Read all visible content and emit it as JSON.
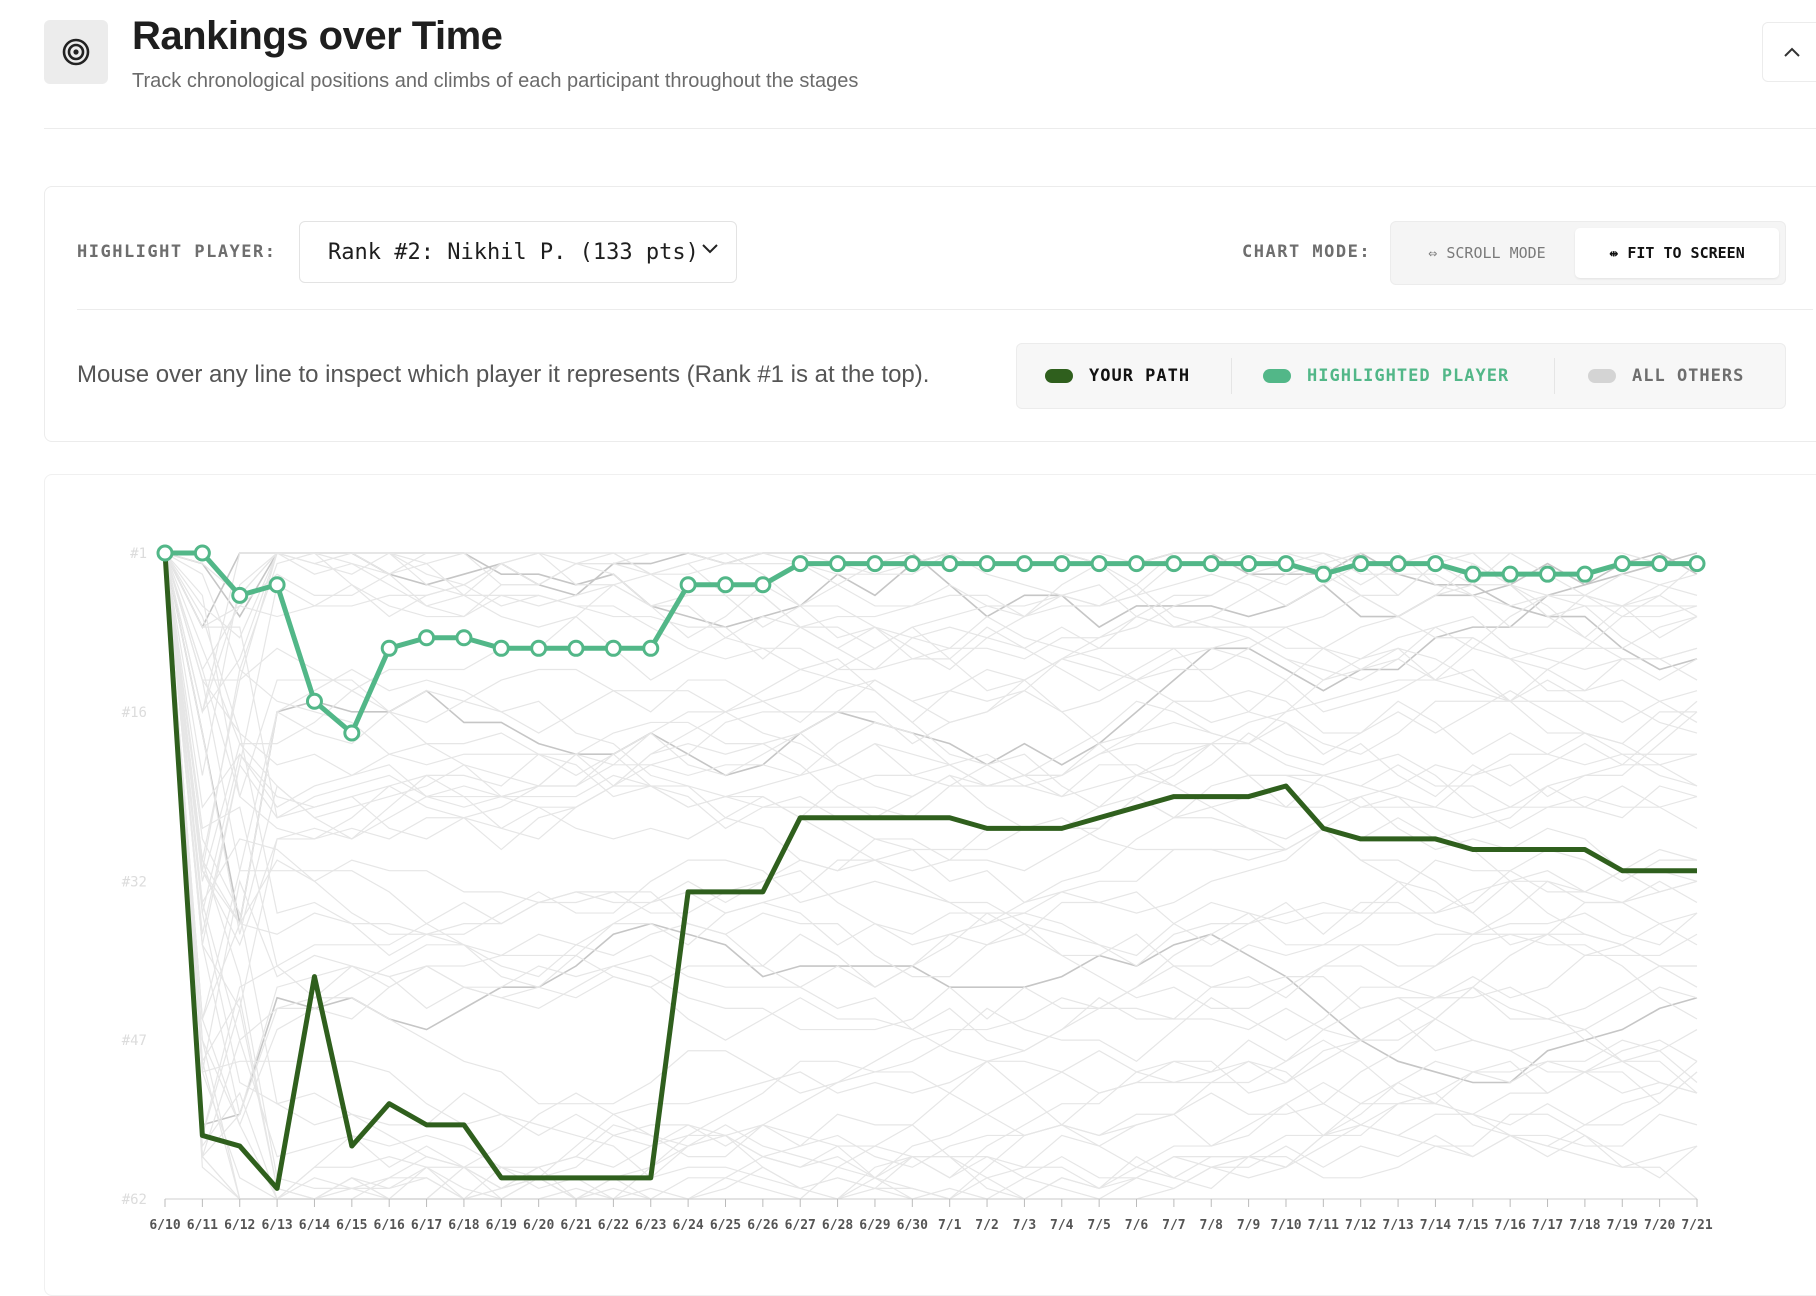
{
  "header": {
    "title": "Rankings over Time",
    "subtitle": "Track chronological positions and climbs of each participant throughout the stages",
    "logo_icon": "target-icon",
    "collapse_icon": "chevron-up-icon"
  },
  "controls": {
    "highlight_label": "HIGHLIGHT PLAYER:",
    "selected_player": "Rank #2: Nikhil P. (133 pts)",
    "chart_mode_label": "CHART MODE:",
    "scroll_mode_label": "⇔ SCROLL MODE",
    "fit_mode_label": "⇹ FIT TO SCREEN",
    "active_mode": "fit",
    "hint": "Mouse over any line to inspect which player it represents (Rank #1 is at the top)."
  },
  "legend": {
    "items": [
      {
        "label": "YOUR PATH",
        "color": "#2f5f1d"
      },
      {
        "label": "HIGHLIGHTED PLAYER",
        "color": "#52b788"
      },
      {
        "label": "ALL OTHERS",
        "color": "#d4d4d4"
      }
    ]
  },
  "chart_data": {
    "type": "line",
    "y_inverted": true,
    "ylim": [
      1,
      62
    ],
    "yticks": [
      1,
      16,
      32,
      47,
      62
    ],
    "ytick_labels": [
      "#1",
      "#16",
      "#32",
      "#47",
      "#62"
    ],
    "x": [
      "6/10",
      "6/11",
      "6/12",
      "6/13",
      "6/14",
      "6/15",
      "6/16",
      "6/17",
      "6/18",
      "6/19",
      "6/20",
      "6/21",
      "6/22",
      "6/23",
      "6/24",
      "6/25",
      "6/26",
      "6/27",
      "6/28",
      "6/29",
      "6/30",
      "7/1",
      "7/2",
      "7/3",
      "7/4",
      "7/5",
      "7/6",
      "7/7",
      "7/8",
      "7/9",
      "7/10",
      "7/11",
      "7/12",
      "7/13",
      "7/14",
      "7/15",
      "7/16",
      "7/17",
      "7/18",
      "7/19",
      "7/20",
      "7/21"
    ],
    "grid": false,
    "series": [
      {
        "role": "your-path",
        "color": "#2f5f1d",
        "values": [
          1,
          56,
          57,
          61,
          41,
          57,
          53,
          55,
          55,
          60,
          60,
          60,
          60,
          60,
          33,
          33,
          33,
          26,
          26,
          26,
          26,
          26,
          27,
          27,
          27,
          26,
          25,
          24,
          24,
          24,
          23,
          27,
          28,
          28,
          28,
          29,
          29,
          29,
          29,
          31,
          31,
          31
        ]
      },
      {
        "role": "highlighted",
        "color": "#52b788",
        "values": [
          1,
          1,
          5,
          4,
          15,
          18,
          10,
          9,
          9,
          10,
          10,
          10,
          10,
          10,
          4,
          4,
          4,
          2,
          2,
          2,
          2,
          2,
          2,
          2,
          2,
          2,
          2,
          2,
          2,
          2,
          2,
          3,
          2,
          2,
          2,
          3,
          3,
          3,
          3,
          2,
          2,
          2
        ]
      }
    ]
  }
}
